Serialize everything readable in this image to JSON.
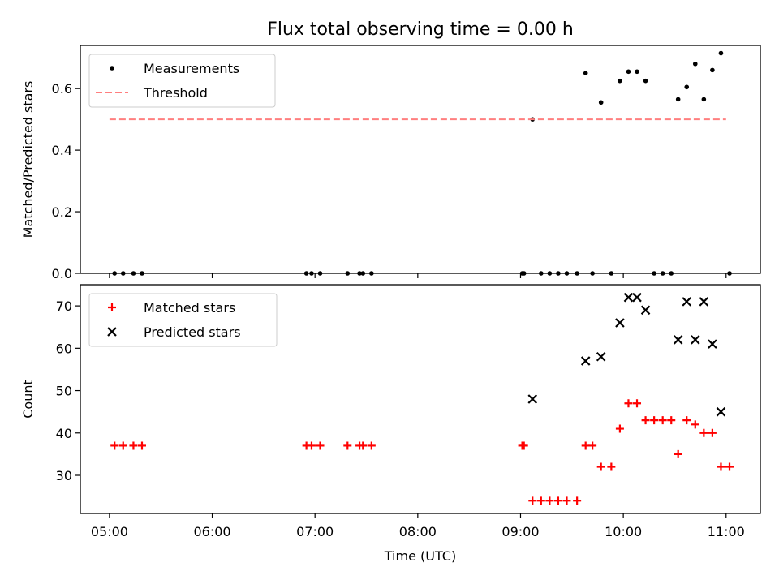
{
  "title": "Flux total observing time = 0.00 h",
  "chart_data": [
    {
      "type": "scatter",
      "ylabel": "Matched/Predicted stars",
      "ylim": [
        0,
        0.74
      ],
      "yticks": [
        "0.0",
        "0.2",
        "0.4",
        "0.6"
      ],
      "xlim": [
        "04:43",
        "11:20"
      ],
      "legend_position": "upper-left",
      "series": [
        {
          "name": "Measurements",
          "style": "dot",
          "color": "#000000",
          "x": [
            "05:03",
            "05:08",
            "05:14",
            "05:19",
            "06:55",
            "06:58",
            "07:03",
            "07:19",
            "07:26",
            "07:28",
            "07:33",
            "09:01",
            "09:02",
            "09:07",
            "09:12",
            "09:17",
            "09:22",
            "09:27",
            "09:33",
            "09:38",
            "09:42",
            "09:47",
            "09:53",
            "09:58",
            "10:03",
            "10:08",
            "10:13",
            "10:18",
            "10:23",
            "10:28",
            "10:32",
            "10:37",
            "10:42",
            "10:47",
            "10:52",
            "10:57",
            "11:02"
          ],
          "y": [
            0,
            0,
            0,
            0,
            0,
            0,
            0,
            0,
            0,
            0,
            0,
            0,
            0,
            0.5,
            0,
            0,
            0,
            0,
            0,
            0.65,
            0,
            0.555,
            0,
            0.625,
            0.655,
            0.655,
            0.625,
            0,
            0,
            0,
            0.565,
            0.605,
            0.68,
            0.565,
            0.66,
            0.715,
            0
          ]
        },
        {
          "name": "Threshold",
          "style": "dashed-line",
          "color": "#ff7f7f",
          "x": [
            "05:00",
            "11:00"
          ],
          "y": [
            0.5,
            0.5
          ]
        }
      ]
    },
    {
      "type": "scatter",
      "xlabel": "Time (UTC)",
      "ylabel": "Count",
      "ylim": [
        21,
        75
      ],
      "yticks": [
        "30",
        "40",
        "50",
        "60",
        "70"
      ],
      "xlim": [
        "04:43",
        "11:20"
      ],
      "xticks": [
        "05:00",
        "06:00",
        "07:00",
        "08:00",
        "09:00",
        "10:00",
        "11:00"
      ],
      "legend_position": "upper-left",
      "series": [
        {
          "name": "Matched stars",
          "marker": "plus",
          "color": "#ff0000",
          "x": [
            "05:03",
            "05:08",
            "05:14",
            "05:19",
            "06:55",
            "06:58",
            "07:03",
            "07:19",
            "07:26",
            "07:28",
            "07:33",
            "09:01",
            "09:02",
            "09:07",
            "09:12",
            "09:17",
            "09:22",
            "09:27",
            "09:33",
            "09:38",
            "09:42",
            "09:47",
            "09:53",
            "09:58",
            "10:03",
            "10:08",
            "10:13",
            "10:18",
            "10:23",
            "10:28",
            "10:32",
            "10:37",
            "10:42",
            "10:47",
            "10:52",
            "10:57",
            "11:02"
          ],
          "y": [
            37,
            37,
            37,
            37,
            37,
            37,
            37,
            37,
            37,
            37,
            37,
            37,
            37,
            24,
            24,
            24,
            24,
            24,
            24,
            37,
            37,
            32,
            32,
            41,
            47,
            47,
            43,
            43,
            43,
            43,
            35,
            43,
            42,
            40,
            40,
            32,
            32
          ]
        },
        {
          "name": "Predicted stars",
          "marker": "x",
          "color": "#000000",
          "x": [
            "09:07",
            "09:38",
            "09:47",
            "09:58",
            "10:03",
            "10:08",
            "10:13",
            "10:32",
            "10:37",
            "10:42",
            "10:47",
            "10:52",
            "10:57"
          ],
          "y": [
            48,
            57,
            58,
            66,
            72,
            72,
            69,
            62,
            71,
            62,
            71,
            61,
            45
          ]
        }
      ]
    }
  ]
}
